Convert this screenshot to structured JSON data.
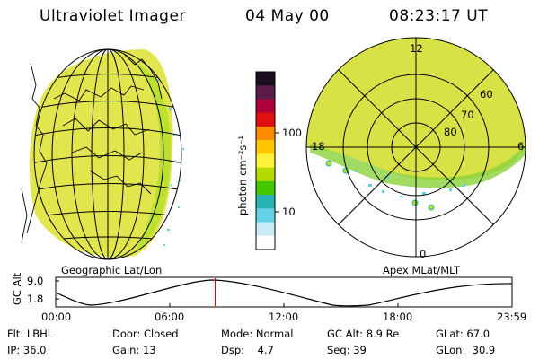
{
  "header": {
    "instrument": "Ultraviolet Imager",
    "date": "04 May 00",
    "time": "08:23:17 UT"
  },
  "left_panel": {
    "caption": "Geographic Lat/Lon",
    "image_colors": {
      "fill": "#e2e64e",
      "edge": "#b5de2a",
      "land_outline": "#000000"
    }
  },
  "colorbar": {
    "unit_label": "photon cm⁻²s⁻¹",
    "ticks": [
      "100",
      "10"
    ],
    "scale": "log",
    "colors": [
      "#1a0f1e",
      "#5a1a4a",
      "#b0003a",
      "#e01010",
      "#ff8c00",
      "#ffc800",
      "#fff03c",
      "#b4dc00",
      "#46c800",
      "#28b4b4",
      "#64d2e6",
      "#c8ebf5",
      "#ffffff"
    ]
  },
  "right_panel": {
    "caption": "Apex MLat/MLT",
    "mlt_labels": [
      "12",
      "18",
      "6",
      "0"
    ],
    "mlat_labels": [
      "60",
      "70",
      "80"
    ]
  },
  "timeline": {
    "axis_label": "GC Alt",
    "y_ticks": [
      "9.0",
      "1.8"
    ],
    "x_ticks": [
      "00:00",
      "06:00",
      "12:00",
      "18:00",
      "23:59"
    ],
    "marker_time_hours": 8.39,
    "marker_color": "#e00000"
  },
  "status": {
    "row1": {
      "filter": "Flt: LBHL",
      "door": "Door: Closed",
      "mode": "Mode: Normal",
      "gc_alt": "GC Alt: 8.9 Re",
      "glat": "GLat: 67.0"
    },
    "row2": {
      "ip": "IP: 36.0",
      "gain": "Gain: 13",
      "dsp": "Dsp:    4.7",
      "seq": "Seq: 39",
      "glon": "GLon:  30.9"
    }
  }
}
